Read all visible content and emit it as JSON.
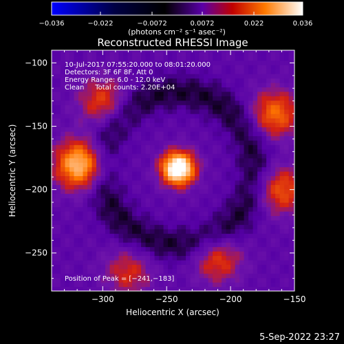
{
  "colorbar": {
    "tick_labels": [
      "−0.036",
      "−0.022",
      "−0.0072",
      "0.0072",
      "0.022",
      "0.036"
    ],
    "tick_values": [
      -0.036,
      -0.022,
      -0.0072,
      0.0072,
      0.022,
      0.036
    ],
    "range": [
      -0.036,
      0.036
    ],
    "units_label": "(photons cm⁻² s⁻¹ asec⁻²)",
    "colors": [
      "#0000ff",
      "#000000",
      "#7a00cc",
      "#ff0000",
      "#ff8800",
      "#ffffff"
    ]
  },
  "chart_data": {
    "type": "heatmap",
    "title": "Reconstructed RHESSI Image",
    "xlabel": "Heliocentric X (arcsec)",
    "ylabel": "Heliocentric Y (arcsec)",
    "xlim": [
      -340,
      -150
    ],
    "ylim": [
      -280,
      -90
    ],
    "x_ticks": [
      -300,
      -250,
      -200,
      -150
    ],
    "x_tick_labels": [
      "−300",
      "−250",
      "−200",
      "−150"
    ],
    "y_ticks": [
      -100,
      -150,
      -200,
      -250
    ],
    "y_tick_labels": [
      "−100",
      "−150",
      "−200",
      "−250"
    ],
    "peak": {
      "x": -241,
      "y": -183
    },
    "sources": [
      {
        "x": -241,
        "y": -183,
        "intensity": 0.036
      },
      {
        "x": -318,
        "y": -180,
        "intensity": 0.025
      },
      {
        "x": -165,
        "y": -140,
        "intensity": 0.016
      },
      {
        "x": -160,
        "y": -200,
        "intensity": 0.014
      },
      {
        "x": -300,
        "y": -130,
        "intensity": 0.012
      },
      {
        "x": -210,
        "y": -255,
        "intensity": 0.012
      },
      {
        "x": -280,
        "y": -265,
        "intensity": 0.01
      }
    ],
    "info_lines": [
      "10-Jul-2017 07:55:20.000 to 08:01:20.000",
      "Detectors: 3F 6F 8F, Att 0",
      "Energy Range: 6.0 - 12.0 keV",
      "Clean     Total counts: 2.20E+04"
    ],
    "peak_label": "Position of Peak = [−241,−183]"
  },
  "footer": {
    "timestamp": "5-Sep-2022 23:27"
  }
}
